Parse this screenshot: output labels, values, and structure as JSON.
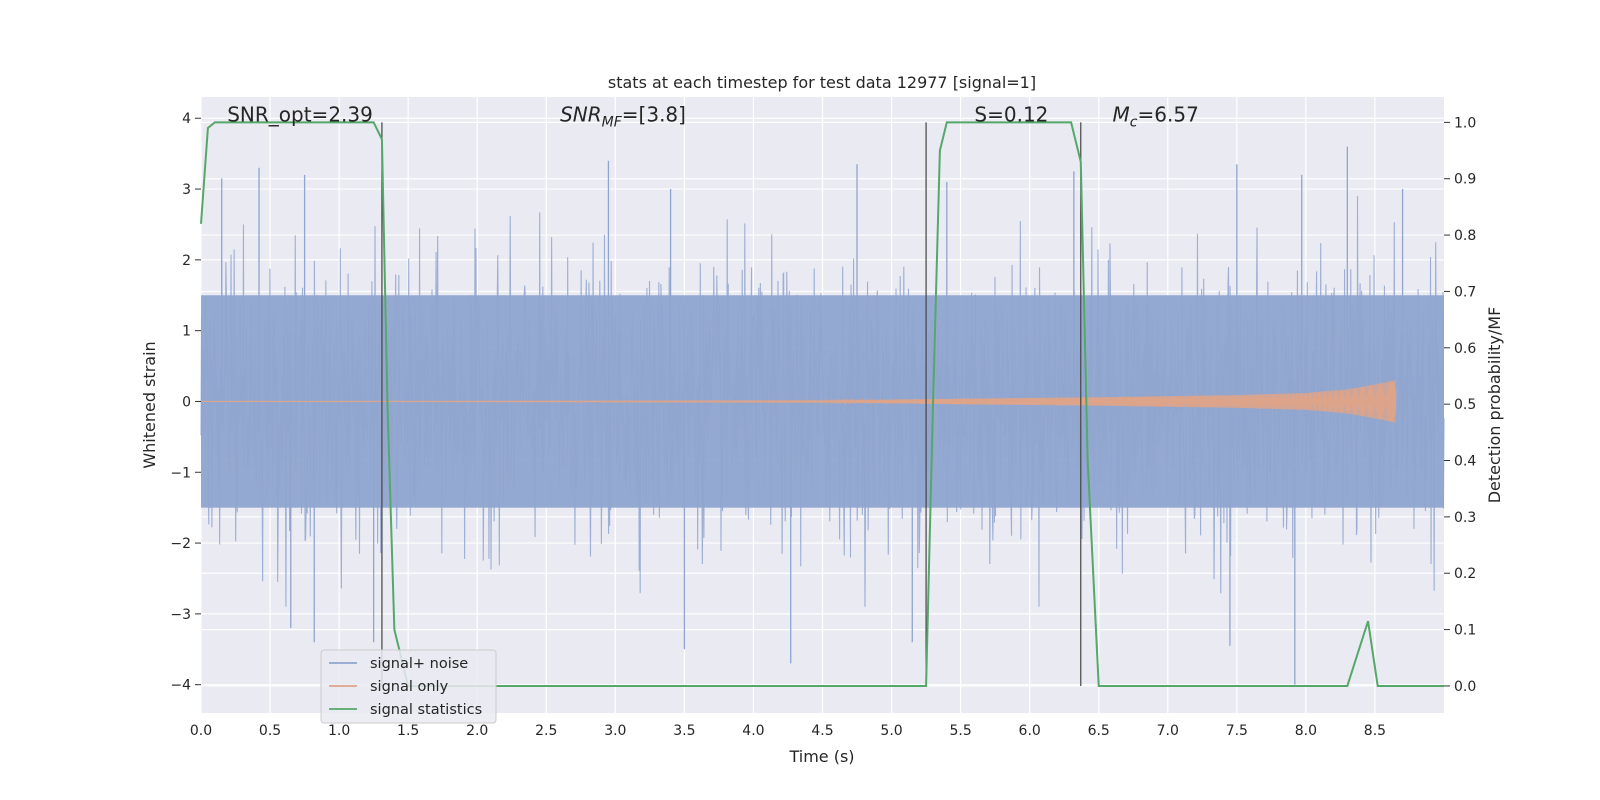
{
  "chart_data": {
    "type": "line",
    "title": "stats at each timestep for test data 12977 [signal=1]",
    "xlabel": "Time (s)",
    "ylabel": "Whitened strain",
    "y2label": "Detection probability/MF",
    "xlim": [
      0,
      9
    ],
    "ylim": [
      -4.4,
      4.3
    ],
    "y2lim": [
      -0.048,
      1.045
    ],
    "x_ticks": [
      0.0,
      0.5,
      1.0,
      1.5,
      2.0,
      2.5,
      3.0,
      3.5,
      4.0,
      4.5,
      5.0,
      5.5,
      6.0,
      6.5,
      7.0,
      7.5,
      8.0,
      8.5
    ],
    "x_tick_labels": [
      "0.0",
      "0.5",
      "1.0",
      "1.5",
      "2.0",
      "2.5",
      "3.0",
      "3.5",
      "4.0",
      "4.5",
      "5.0",
      "5.5",
      "6.0",
      "6.5",
      "7.0",
      "7.5",
      "8.0",
      "8.5"
    ],
    "y_ticks": [
      4,
      3,
      2,
      1,
      0,
      -1,
      -2,
      -3,
      -4
    ],
    "y_tick_labels": [
      "4",
      "3",
      "2",
      "1",
      "0",
      "−1",
      "−2",
      "−3",
      "−4"
    ],
    "y2_ticks": [
      1.0,
      0.9,
      0.8,
      0.7,
      0.6,
      0.5,
      0.4,
      0.3,
      0.2,
      0.1,
      0.0
    ],
    "y2_tick_labels": [
      "1.0",
      "0.9",
      "0.8",
      "0.7",
      "0.6",
      "0.5",
      "0.4",
      "0.3",
      "0.2",
      "0.1",
      "0.0"
    ],
    "grid": true,
    "legend_position": "lower-left",
    "series": [
      {
        "name": "signal+ noise",
        "color": "#8fa5cf",
        "axis": "left",
        "description_values": {
          "t_range": [
            0,
            9
          ],
          "typical_band": [
            -2.4,
            2.4
          ],
          "peaks": [
            {
              "x": 0.15,
              "y": 3.15
            },
            {
              "x": 0.42,
              "y": 3.3
            },
            {
              "x": 0.75,
              "y": 3.2
            },
            {
              "x": 2.95,
              "y": 3.4
            },
            {
              "x": 3.4,
              "y": 3.0
            },
            {
              "x": 4.75,
              "y": 3.35
            },
            {
              "x": 5.4,
              "y": 3.1
            },
            {
              "x": 6.32,
              "y": 3.25
            },
            {
              "x": 7.5,
              "y": 3.35
            },
            {
              "x": 7.97,
              "y": 3.2
            },
            {
              "x": 8.3,
              "y": 3.6
            },
            {
              "x": 8.7,
              "y": 3.0
            }
          ],
          "troughs": [
            {
              "x": 0.65,
              "y": -3.2
            },
            {
              "x": 0.82,
              "y": -3.4
            },
            {
              "x": 1.25,
              "y": -3.4
            },
            {
              "x": 3.5,
              "y": -3.5
            },
            {
              "x": 4.27,
              "y": -3.7
            },
            {
              "x": 5.15,
              "y": -3.4
            },
            {
              "x": 7.45,
              "y": -3.45
            },
            {
              "x": 7.92,
              "y": -4.0
            }
          ]
        }
      },
      {
        "name": "signal only",
        "color": "#dda48a",
        "axis": "left",
        "envelope": [
          {
            "t": 0.0,
            "amp": 0.0
          },
          {
            "t": 4.5,
            "amp": 0.01
          },
          {
            "t": 5.5,
            "amp": 0.04
          },
          {
            "t": 6.5,
            "amp": 0.06
          },
          {
            "t": 7.5,
            "amp": 0.09
          },
          {
            "t": 8.0,
            "amp": 0.12
          },
          {
            "t": 8.3,
            "amp": 0.17
          },
          {
            "t": 8.5,
            "amp": 0.24
          },
          {
            "t": 8.65,
            "amp": 0.3
          }
        ]
      },
      {
        "name": "signal statistics",
        "color": "#55a868",
        "axis": "right",
        "x": [
          0.0,
          0.05,
          0.1,
          0.3,
          0.5,
          1.0,
          1.25,
          1.31,
          1.35,
          1.4,
          1.5,
          2.0,
          3.0,
          4.0,
          5.0,
          5.25,
          5.3,
          5.35,
          5.4,
          5.6,
          6.0,
          6.3,
          6.37,
          6.42,
          6.5,
          7.0,
          8.0,
          8.3,
          8.45,
          8.52,
          8.7,
          9.0
        ],
        "y": [
          0.82,
          0.99,
          1.0,
          1.0,
          1.0,
          1.0,
          1.0,
          0.97,
          0.5,
          0.1,
          0.0,
          0.0,
          0.0,
          0.0,
          0.0,
          0.0,
          0.5,
          0.95,
          1.0,
          1.0,
          1.0,
          1.0,
          0.93,
          0.4,
          0.0,
          0.0,
          0.0,
          0.0,
          0.115,
          0.0,
          0.0,
          0.0
        ]
      }
    ],
    "vertical_lines": [
      1.31,
      5.25,
      6.37
    ],
    "annotations": [
      {
        "text": "SNR_opt=2.39",
        "x": 0.19,
        "y": 4.05
      },
      {
        "text": "SNR",
        "sub": "MF",
        "tail": "=[3.8]",
        "x": 2.6,
        "y": 4.05
      },
      {
        "text": "S=0.12",
        "x": 5.6,
        "y": 4.05
      },
      {
        "text": "M",
        "sub": "c",
        "tail": "=6.57",
        "x": 6.6,
        "y": 4.05
      }
    ]
  }
}
